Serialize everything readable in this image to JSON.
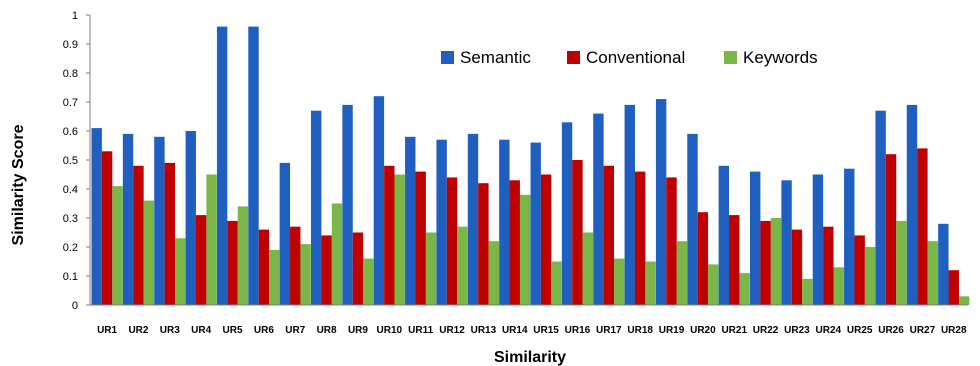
{
  "chart_data": {
    "type": "bar",
    "xlabel": "Similarity",
    "ylabel": "Similarity Score",
    "ylim": [
      0,
      1
    ],
    "yticks": [
      "0",
      "0.1",
      "0.2",
      "0.3",
      "0.4",
      "0.5",
      "0.6",
      "0.7",
      "0.8",
      "0.9",
      "1"
    ],
    "legend_position": "top-right",
    "grid": false,
    "categories": [
      "UR1",
      "UR2",
      "UR3",
      "UR4",
      "UR5",
      "UR6",
      "UR7",
      "UR8",
      "UR9",
      "UR10",
      "UR11",
      "UR12",
      "UR13",
      "UR14",
      "UR15",
      "UR16",
      "UR17",
      "UR18",
      "UR19",
      "UR20",
      "UR21",
      "UR22",
      "UR23",
      "UR24",
      "UR25",
      "UR26",
      "UR27",
      "UR28"
    ],
    "series": [
      {
        "name": "Semantic",
        "color": "#1f5fbf",
        "values": [
          0.61,
          0.59,
          0.58,
          0.6,
          0.96,
          0.96,
          0.49,
          0.67,
          0.69,
          0.72,
          0.58,
          0.57,
          0.59,
          0.57,
          0.56,
          0.63,
          0.66,
          0.69,
          0.71,
          0.59,
          0.48,
          0.46,
          0.43,
          0.45,
          0.47,
          0.67,
          0.69,
          0.28
        ]
      },
      {
        "name": "Conventional",
        "color": "#c00000",
        "values": [
          0.53,
          0.48,
          0.49,
          0.31,
          0.29,
          0.26,
          0.27,
          0.24,
          0.25,
          0.48,
          0.46,
          0.44,
          0.42,
          0.43,
          0.45,
          0.5,
          0.48,
          0.46,
          0.44,
          0.32,
          0.31,
          0.29,
          0.26,
          0.27,
          0.24,
          0.52,
          0.54,
          0.12
        ]
      },
      {
        "name": "Keywords",
        "color": "#7ab648",
        "values": [
          0.41,
          0.36,
          0.23,
          0.45,
          0.34,
          0.19,
          0.21,
          0.35,
          0.16,
          0.45,
          0.25,
          0.27,
          0.22,
          0.38,
          0.15,
          0.25,
          0.16,
          0.15,
          0.22,
          0.14,
          0.11,
          0.3,
          0.09,
          0.13,
          0.2,
          0.29,
          0.22,
          0.03
        ]
      }
    ]
  }
}
